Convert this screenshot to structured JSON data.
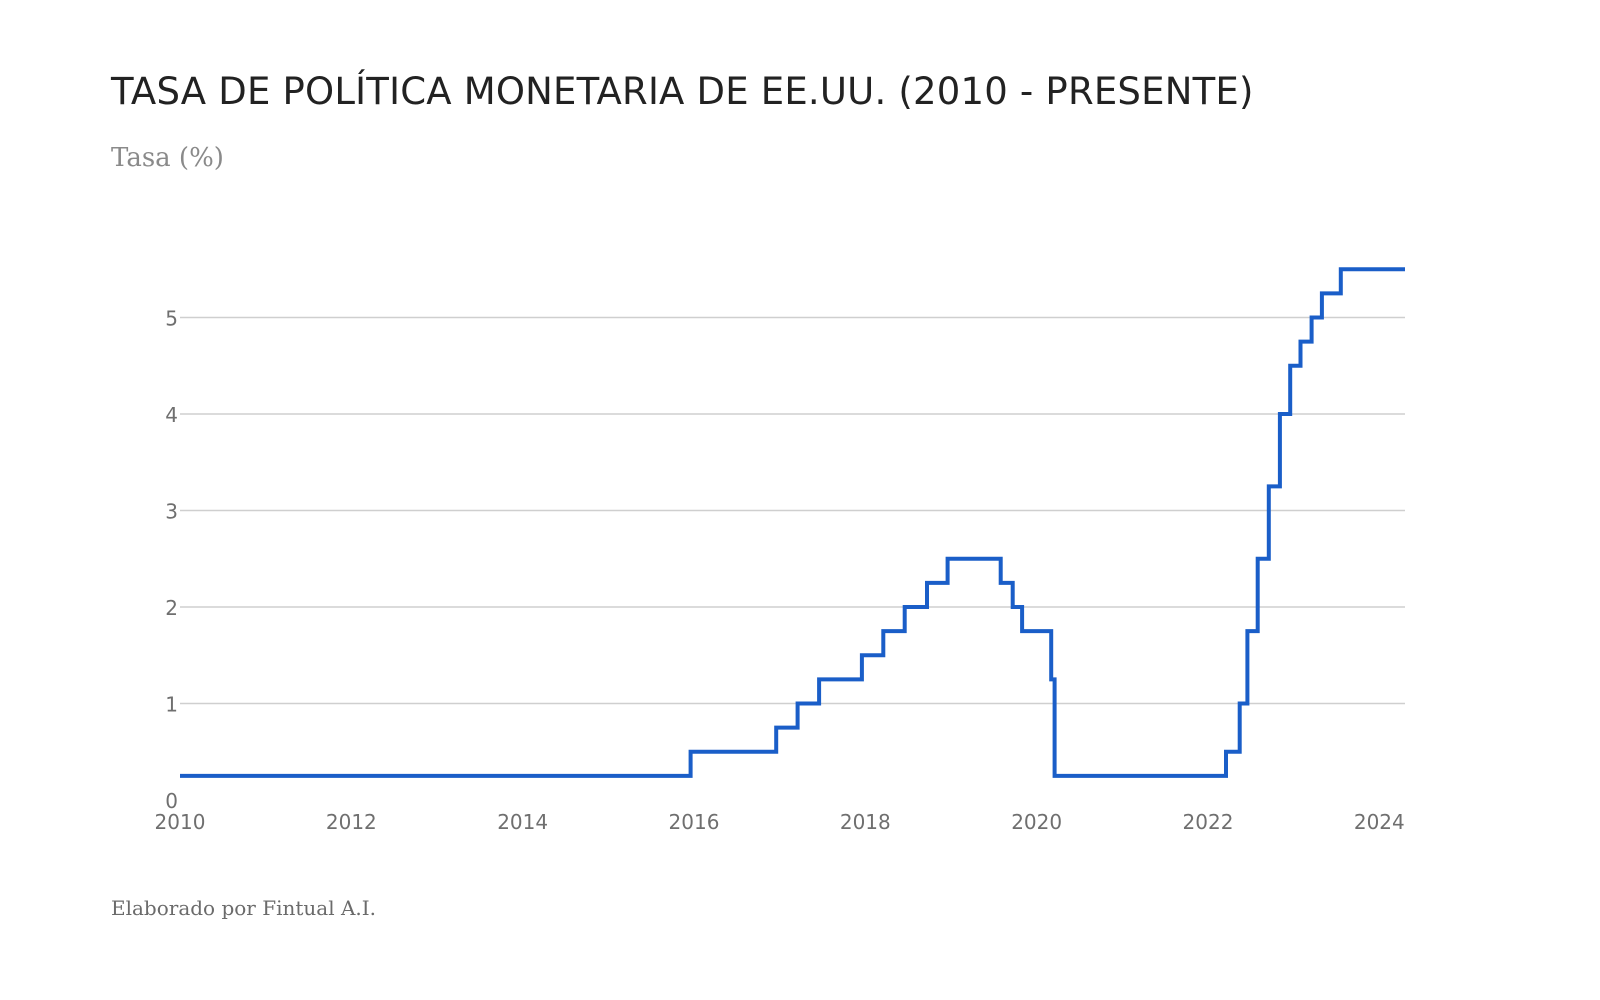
{
  "title": "TASA DE POLÍTICA MONETARIA DE EE.UU. (2010 - PRESENTE)",
  "subtitle": "Tasa (%)",
  "footer": "Elaborado por Fintual A.I.",
  "chart_data": {
    "type": "line",
    "step": true,
    "title": "TASA DE POLÍTICA MONETARIA DE EE.UU. (2010 - PRESENTE)",
    "ylabel": "Tasa (%)",
    "xlabel": "",
    "xlim": [
      2010,
      2024.3
    ],
    "ylim": [
      0,
      5.5
    ],
    "grid": true,
    "x_ticks": [
      2010,
      2012,
      2014,
      2016,
      2018,
      2020,
      2022,
      2024
    ],
    "x_tick_labels": [
      "2010",
      "2012",
      "2014",
      "2016",
      "2018",
      "2020",
      "2022",
      "2024"
    ],
    "y_ticks": [
      0,
      1,
      2,
      3,
      4,
      5
    ],
    "y_tick_labels": [
      "0",
      "1",
      "2",
      "3",
      "4",
      "5"
    ],
    "line_color": "#1a5ec8",
    "series": [
      {
        "name": "Tasa de política monetaria",
        "x": [
          2010,
          2015.96,
          2016.96,
          2017.21,
          2017.46,
          2017.96,
          2018.21,
          2018.46,
          2018.72,
          2018.96,
          2019.58,
          2019.72,
          2019.83,
          2020.17,
          2020.21,
          2022.21,
          2022.37,
          2022.46,
          2022.58,
          2022.71,
          2022.84,
          2022.96,
          2023.08,
          2023.21,
          2023.33,
          2023.55,
          2024.3
        ],
        "y": [
          0.25,
          0.5,
          0.75,
          1.0,
          1.25,
          1.5,
          1.75,
          2.0,
          2.25,
          2.5,
          2.25,
          2.0,
          1.75,
          1.25,
          0.25,
          0.5,
          1.0,
          1.75,
          2.5,
          3.25,
          4.0,
          4.5,
          4.75,
          5.0,
          5.25,
          5.5,
          5.5
        ]
      }
    ]
  }
}
